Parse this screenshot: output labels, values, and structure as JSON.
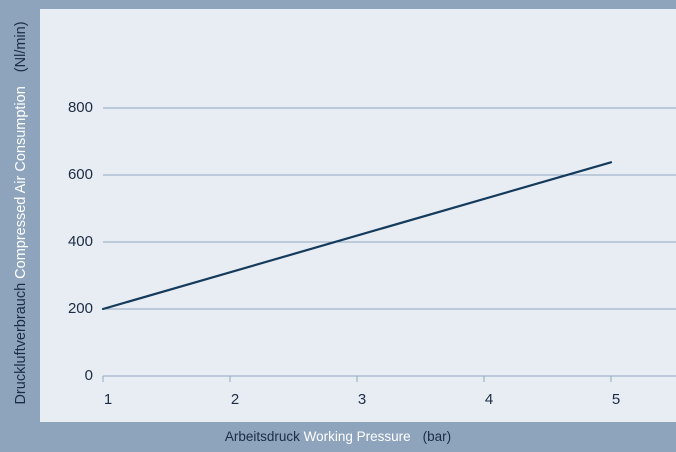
{
  "chart_data": {
    "type": "line",
    "title": "",
    "xlabel": {
      "de": "Arbeitsdruck",
      "en": "Working Pressure",
      "unit": "(bar)"
    },
    "ylabel": {
      "de": "Druckluftverbrauch",
      "en": "Compressed Air Consumption",
      "unit": "(Nl/min)"
    },
    "x_ticks": [
      "1",
      "2",
      "3",
      "4",
      "5"
    ],
    "y_ticks": [
      "0",
      "200",
      "400",
      "600",
      "800"
    ],
    "xlim": [
      1,
      5
    ],
    "ylim": [
      0,
      800
    ],
    "grid": true,
    "series": [
      {
        "color": "#143a5c",
        "x": [
          1,
          5
        ],
        "y": [
          200,
          638
        ]
      }
    ]
  },
  "colors": {
    "frame": "#8ea4bd",
    "plot_bg": "#e8edf3",
    "grid": "#8fa6c0",
    "line": "#143a5c",
    "text_dark": "#1b2c44",
    "text_light": "#ffffff"
  }
}
